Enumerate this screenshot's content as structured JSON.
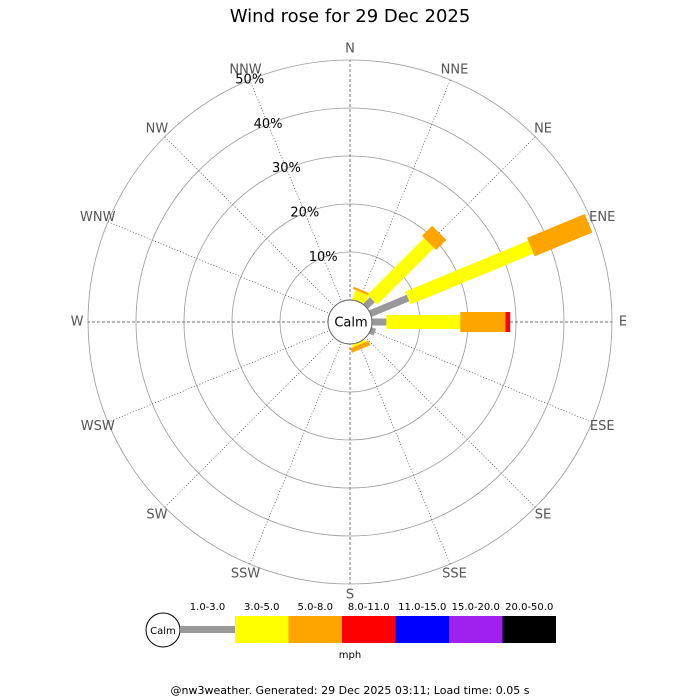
{
  "chart_data": {
    "type": "wind-rose",
    "title": "Wind rose for 29 Dec 2025",
    "directions": [
      "N",
      "NNE",
      "NE",
      "ENE",
      "E",
      "ESE",
      "SE",
      "SSE",
      "S",
      "SSW",
      "SW",
      "WSW",
      "W",
      "WNW",
      "NW",
      "NNW"
    ],
    "rlim": [
      0,
      50
    ],
    "rticks": [
      {
        "value": 10,
        "label": "10%"
      },
      {
        "value": 20,
        "label": "20%"
      },
      {
        "value": 30,
        "label": "30%"
      },
      {
        "value": 40,
        "label": "40%"
      },
      {
        "value": 50,
        "label": "50%"
      }
    ],
    "calm_label": "Calm",
    "series": [
      {
        "name": "1.0-3.0",
        "color": "#999999",
        "values": [
          0,
          0,
          2,
          8.5,
          3,
          1,
          0,
          0,
          0,
          0,
          0,
          0,
          0,
          0,
          0,
          0
        ]
      },
      {
        "name": "3.0-5.0",
        "color": "#ffff00",
        "values": [
          0,
          2,
          16.7,
          27.7,
          15.4,
          0,
          0,
          0.5,
          0,
          0,
          0,
          0,
          0,
          0,
          0,
          0
        ]
      },
      {
        "name": "5.0-8.0",
        "color": "#ffa500",
        "values": [
          0,
          0.5,
          3,
          13,
          9.4,
          0,
          0,
          1,
          0,
          0,
          0,
          0,
          0,
          0,
          0,
          0
        ]
      },
      {
        "name": "8.0-11.0",
        "color": "#ff0000",
        "values": [
          0,
          0,
          0,
          0,
          1,
          0,
          0,
          0,
          0,
          0,
          0,
          0,
          0,
          0,
          0,
          0
        ]
      },
      {
        "name": "11.0-15.0",
        "color": "#0000ff",
        "values": [
          0,
          0,
          0,
          0,
          0,
          0,
          0,
          0,
          0,
          0,
          0,
          0,
          0,
          0,
          0,
          0
        ]
      },
      {
        "name": "15.0-20.0",
        "color": "#a020f0",
        "values": [
          0,
          0,
          0,
          0,
          0,
          0,
          0,
          0,
          0,
          0,
          0,
          0,
          0,
          0,
          0,
          0
        ]
      },
      {
        "name": "20.0-50.0",
        "color": "#000000",
        "values": [
          0,
          0,
          0,
          0,
          0,
          0,
          0,
          0,
          0,
          0,
          0,
          0,
          0,
          0,
          0,
          0
        ]
      }
    ],
    "legend_unit": "mph",
    "footer": "@nw3weather. Generated: 29 Dec 2025 03:11; Load time: 0.05 s"
  }
}
